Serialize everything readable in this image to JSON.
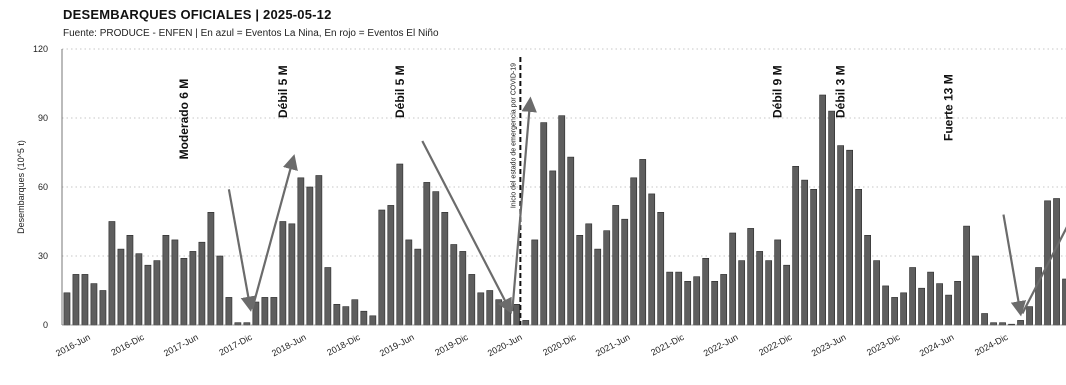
{
  "page": {
    "title": "DESEMBARQUES OFICIALES | 2025-05-12",
    "subtitle": "Fuente: PRODUCE - ENFEN | En azul = Eventos La Nina, En rojo = Eventos El Niño"
  },
  "chart_data": {
    "type": "bar",
    "title": "DESEMBARQUES OFICIALES | 2025-05-12",
    "subtitle": "Fuente: PRODUCE - ENFEN | En azul = Eventos La Nina, En rojo = Eventos El Niño",
    "ylabel": "Desembarques (10^5 t)",
    "ylim": [
      0,
      120
    ],
    "yticks": [
      0,
      30,
      60,
      90,
      120
    ],
    "xticks": [
      {
        "label": "2016-Jun",
        "index": 2
      },
      {
        "label": "2016-Dic",
        "index": 8
      },
      {
        "label": "2017-Jun",
        "index": 14
      },
      {
        "label": "2017-Dic",
        "index": 20
      },
      {
        "label": "2018-Jun",
        "index": 26
      },
      {
        "label": "2018-Dic",
        "index": 32
      },
      {
        "label": "2019-Jun",
        "index": 38
      },
      {
        "label": "2019-Dic",
        "index": 44
      },
      {
        "label": "2020-Jun",
        "index": 50
      },
      {
        "label": "2020-Dic",
        "index": 56
      },
      {
        "label": "2021-Jun",
        "index": 62
      },
      {
        "label": "2021-Dic",
        "index": 68
      },
      {
        "label": "2022-Jun",
        "index": 74
      },
      {
        "label": "2022-Dic",
        "index": 80
      },
      {
        "label": "2023-Jun",
        "index": 86
      },
      {
        "label": "2023-Dic",
        "index": 92
      },
      {
        "label": "2024-Jun",
        "index": 98
      },
      {
        "label": "2024-Dic",
        "index": 104
      }
    ],
    "values": [
      14,
      22,
      22,
      18,
      15,
      45,
      33,
      39,
      31,
      26,
      28,
      39,
      37,
      29,
      32,
      36,
      49,
      30,
      12,
      1,
      1,
      10,
      12,
      12,
      45,
      44,
      64,
      60,
      65,
      25,
      9,
      8,
      11,
      6,
      4,
      50,
      52,
      70,
      37,
      33,
      62,
      58,
      49,
      35,
      32,
      22,
      14,
      15,
      11,
      10,
      9,
      2,
      37,
      88,
      67,
      91,
      73,
      39,
      44,
      33,
      41,
      52,
      46,
      64,
      72,
      57,
      49,
      23,
      23,
      19,
      21,
      29,
      19,
      22,
      40,
      28,
      42,
      32,
      28,
      37,
      26,
      69,
      63,
      59,
      100,
      93,
      78,
      76,
      59,
      39,
      28,
      17,
      12,
      14,
      25,
      16,
      23,
      18,
      13,
      19,
      43,
      30,
      5,
      1,
      1,
      0,
      2,
      8,
      25,
      54,
      55,
      20
    ],
    "annotations": [
      {
        "text": "Moderado 6 M",
        "index": 13,
        "y": 72
      },
      {
        "text": "Débil 5 M",
        "index": 24,
        "y": 90
      },
      {
        "text": "Débil 5 M",
        "index": 37,
        "y": 90
      },
      {
        "text": "Débil 9 M",
        "index": 79,
        "y": 90
      },
      {
        "text": "Débil 3 M",
        "index": 86,
        "y": 90
      },
      {
        "text": "Fuerte 13 M",
        "index": 98,
        "y": 80
      }
    ],
    "vline": {
      "index": 50.4,
      "label": "Inicio del estado de emergencia por COVID-19"
    },
    "arrows": [
      {
        "x1": 18.0,
        "y1": 59,
        "x2": 20.4,
        "y2": 7
      },
      {
        "x1": 20.6,
        "y1": 7,
        "x2": 25.2,
        "y2": 73
      },
      {
        "x1": 39.5,
        "y1": 80,
        "x2": 49.3,
        "y2": 6
      },
      {
        "x1": 49.5,
        "y1": 6,
        "x2": 51.5,
        "y2": 98
      },
      {
        "x1": 104.1,
        "y1": 48,
        "x2": 106.0,
        "y2": 5
      },
      {
        "x1": 106.2,
        "y1": 5,
        "x2": 114.5,
        "y2": 68
      }
    ],
    "colors": {
      "bar": "#5e5e5e",
      "bar_edge": "#2a2a2a",
      "arrow": "#6b6b6b"
    }
  }
}
